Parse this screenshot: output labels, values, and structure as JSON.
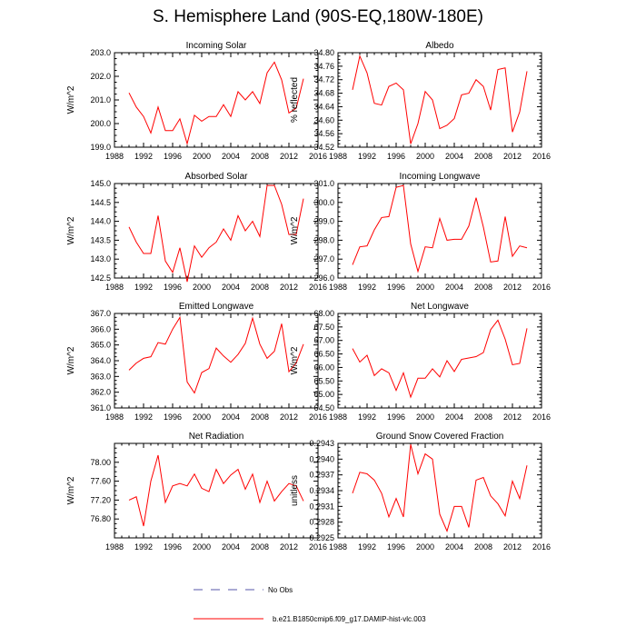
{
  "title": "S. Hemisphere Land (90S-EQ,180W-180E)",
  "legend": {
    "obs_label": "No Obs",
    "model_label": "b.e21.B1850cmip6.f09_g17.DAMIP-hist-vlc.003",
    "obs_color": "#5555aa",
    "model_color": "#ff0000"
  },
  "chart_data": [
    {
      "type": "line",
      "title": "Incoming Solar",
      "ylabel": "W/m^2",
      "xlim": [
        1988,
        2016
      ],
      "xticks": [
        1988,
        1992,
        1996,
        2000,
        2004,
        2008,
        2012,
        2016
      ],
      "ylim": [
        199.0,
        203.0
      ],
      "yticks": [
        199.0,
        200.0,
        201.0,
        202.0,
        203.0
      ],
      "ydec": 1,
      "x": [
        1990,
        1991,
        1992,
        1993,
        1994,
        1995,
        1996,
        1997,
        1998,
        1999,
        2000,
        2001,
        2002,
        2003,
        2004,
        2005,
        2006,
        2007,
        2008,
        2009,
        2010,
        2011,
        2012,
        2013,
        2014
      ],
      "series": [
        {
          "name": "b.e21.B1850cmip6.f09_g17.DAMIP-hist-vlc.003",
          "values": [
            201.3,
            200.7,
            200.3,
            199.6,
            200.7,
            199.7,
            199.7,
            200.2,
            199.15,
            200.35,
            200.1,
            200.3,
            200.3,
            200.8,
            200.3,
            201.35,
            201.0,
            201.35,
            200.85,
            202.15,
            202.6,
            201.85,
            200.45,
            200.65,
            201.9
          ]
        }
      ]
    },
    {
      "type": "line",
      "title": "Albedo",
      "ylabel": "% reflected",
      "xlim": [
        1988,
        2016
      ],
      "xticks": [
        1988,
        1992,
        1996,
        2000,
        2004,
        2008,
        2012,
        2016
      ],
      "ylim": [
        34.52,
        34.8
      ],
      "yticks": [
        34.52,
        34.56,
        34.6,
        34.64,
        34.68,
        34.72,
        34.76,
        34.8
      ],
      "ydec": 2,
      "x": [
        1990,
        1991,
        1992,
        1993,
        1994,
        1995,
        1996,
        1997,
        1998,
        1999,
        2000,
        2001,
        2002,
        2003,
        2004,
        2005,
        2006,
        2007,
        2008,
        2009,
        2010,
        2011,
        2012,
        2013,
        2014
      ],
      "series": [
        {
          "name": "b.e21.B1850cmip6.f09_g17.DAMIP-hist-vlc.003",
          "values": [
            34.69,
            34.79,
            34.74,
            34.65,
            34.645,
            34.7,
            34.71,
            34.69,
            34.53,
            34.59,
            34.685,
            34.66,
            34.575,
            34.585,
            34.605,
            34.675,
            34.68,
            34.72,
            34.7,
            34.63,
            34.75,
            34.755,
            34.565,
            34.625,
            34.745
          ]
        }
      ]
    },
    {
      "type": "line",
      "title": "Absorbed Solar",
      "ylabel": "W/m^2",
      "xlim": [
        1988,
        2016
      ],
      "xticks": [
        1988,
        1992,
        1996,
        2000,
        2004,
        2008,
        2012,
        2016
      ],
      "ylim": [
        142.5,
        145.0
      ],
      "yticks": [
        142.5,
        143.0,
        143.5,
        144.0,
        144.5,
        145.0
      ],
      "ydec": 1,
      "x": [
        1990,
        1991,
        1992,
        1993,
        1994,
        1995,
        1996,
        1997,
        1998,
        1999,
        2000,
        2001,
        2002,
        2003,
        2004,
        2005,
        2006,
        2007,
        2008,
        2009,
        2010,
        2011,
        2012,
        2013,
        2014
      ],
      "series": [
        {
          "name": "b.e21.B1850cmip6.f09_g17.DAMIP-hist-vlc.003",
          "values": [
            143.85,
            143.45,
            143.15,
            143.15,
            144.15,
            142.95,
            142.65,
            143.3,
            142.4,
            143.35,
            143.05,
            143.3,
            143.45,
            143.8,
            143.5,
            144.15,
            143.75,
            144.0,
            143.6,
            144.95,
            144.95,
            144.45,
            143.65,
            143.65,
            144.6
          ]
        }
      ]
    },
    {
      "type": "line",
      "title": "Incoming Longwave",
      "ylabel": "W/m^2",
      "xlim": [
        1988,
        2016
      ],
      "xticks": [
        1988,
        1992,
        1996,
        2000,
        2004,
        2008,
        2012,
        2016
      ],
      "ylim": [
        296.0,
        301.0
      ],
      "yticks": [
        296.0,
        297.0,
        298.0,
        299.0,
        300.0,
        301.0
      ],
      "ydec": 1,
      "x": [
        1990,
        1991,
        1992,
        1993,
        1994,
        1995,
        1996,
        1997,
        1998,
        1999,
        2000,
        2001,
        2002,
        2003,
        2004,
        2005,
        2006,
        2007,
        2008,
        2009,
        2010,
        2011,
        2012,
        2013,
        2014
      ],
      "series": [
        {
          "name": "b.e21.B1850cmip6.f09_g17.DAMIP-hist-vlc.003",
          "values": [
            296.7,
            297.65,
            297.7,
            298.55,
            299.2,
            299.25,
            300.8,
            300.9,
            297.8,
            296.35,
            297.65,
            297.6,
            299.15,
            298.0,
            298.05,
            298.05,
            298.75,
            300.25,
            298.7,
            296.85,
            296.9,
            299.25,
            297.15,
            297.7,
            297.6
          ]
        }
      ]
    },
    {
      "type": "line",
      "title": "Emitted Longwave",
      "ylabel": "W/m^2",
      "xlim": [
        1988,
        2016
      ],
      "xticks": [
        1988,
        1992,
        1996,
        2000,
        2004,
        2008,
        2012,
        2016
      ],
      "ylim": [
        361.0,
        367.0
      ],
      "yticks": [
        361.0,
        362.0,
        363.0,
        364.0,
        365.0,
        366.0,
        367.0
      ],
      "ydec": 1,
      "x": [
        1990,
        1991,
        1992,
        1993,
        1994,
        1995,
        1996,
        1997,
        1998,
        1999,
        2000,
        2001,
        2002,
        2003,
        2004,
        2005,
        2006,
        2007,
        2008,
        2009,
        2010,
        2011,
        2012,
        2013,
        2014
      ],
      "series": [
        {
          "name": "b.e21.B1850cmip6.f09_g17.DAMIP-hist-vlc.003",
          "values": [
            363.4,
            363.85,
            364.15,
            364.25,
            365.15,
            365.05,
            366.0,
            366.75,
            362.65,
            361.95,
            363.25,
            363.5,
            364.8,
            364.3,
            363.9,
            364.4,
            365.1,
            366.7,
            365.05,
            364.15,
            364.6,
            366.35,
            363.3,
            363.85,
            365.05
          ]
        }
      ]
    },
    {
      "type": "line",
      "title": "Net Longwave",
      "ylabel": "W/m^2",
      "xlim": [
        1988,
        2016
      ],
      "xticks": [
        1988,
        1992,
        1996,
        2000,
        2004,
        2008,
        2012,
        2016
      ],
      "ylim": [
        64.5,
        68.0
      ],
      "yticks": [
        64.5,
        65.0,
        65.5,
        66.0,
        66.5,
        67.0,
        67.5,
        68.0
      ],
      "ydec": 2,
      "x": [
        1990,
        1991,
        1992,
        1993,
        1994,
        1995,
        1996,
        1997,
        1998,
        1999,
        2000,
        2001,
        2002,
        2003,
        2004,
        2005,
        2006,
        2007,
        2008,
        2009,
        2010,
        2011,
        2012,
        2013,
        2014
      ],
      "series": [
        {
          "name": "b.e21.B1850cmip6.f09_g17.DAMIP-hist-vlc.003",
          "values": [
            66.7,
            66.2,
            66.45,
            65.7,
            65.95,
            65.8,
            65.15,
            65.8,
            64.9,
            65.6,
            65.6,
            65.95,
            65.65,
            66.25,
            65.85,
            66.3,
            66.35,
            66.4,
            66.55,
            67.4,
            67.75,
            67.05,
            66.1,
            66.15,
            67.45
          ]
        }
      ]
    },
    {
      "type": "line",
      "title": "Net Radiation",
      "ylabel": "W/m^2",
      "xlim": [
        1988,
        2016
      ],
      "xticks": [
        1988,
        1992,
        1996,
        2000,
        2004,
        2008,
        2012,
        2016
      ],
      "ylim": [
        76.4,
        78.4
      ],
      "yticks": [
        76.8,
        77.2,
        77.6,
        78.0
      ],
      "ydec": 2,
      "x": [
        1990,
        1991,
        1992,
        1993,
        1994,
        1995,
        1996,
        1997,
        1998,
        1999,
        2000,
        2001,
        2002,
        2003,
        2004,
        2005,
        2006,
        2007,
        2008,
        2009,
        2010,
        2011,
        2012,
        2013,
        2014
      ],
      "series": [
        {
          "name": "b.e21.B1850cmip6.f09_g17.DAMIP-hist-vlc.003",
          "values": [
            77.2,
            77.27,
            76.65,
            77.6,
            78.15,
            77.15,
            77.5,
            77.55,
            77.5,
            77.75,
            77.45,
            77.38,
            77.85,
            77.55,
            77.73,
            77.85,
            77.43,
            77.75,
            77.15,
            77.6,
            77.18,
            77.38,
            77.55,
            77.5,
            77.18
          ]
        }
      ]
    },
    {
      "type": "line",
      "title": "Ground Snow Covered Fraction",
      "ylabel": "unitless",
      "xlim": [
        1988,
        2016
      ],
      "xticks": [
        1988,
        1992,
        1996,
        2000,
        2004,
        2008,
        2012,
        2016
      ],
      "ylim": [
        0.2925,
        0.2943
      ],
      "yticks": [
        0.2925,
        0.2928,
        0.2931,
        0.2934,
        0.2937,
        0.294,
        0.2943
      ],
      "ydec": 4,
      "x": [
        1990,
        1991,
        1992,
        1993,
        1994,
        1995,
        1996,
        1997,
        1998,
        1999,
        2000,
        2001,
        2002,
        2003,
        2004,
        2005,
        2006,
        2007,
        2008,
        2009,
        2010,
        2011,
        2012,
        2013,
        2014
      ],
      "series": [
        {
          "name": "b.e21.B1850cmip6.f09_g17.DAMIP-hist-vlc.003",
          "values": [
            0.29335,
            0.29375,
            0.29372,
            0.2936,
            0.29335,
            0.2929,
            0.29325,
            0.2929,
            0.29428,
            0.29372,
            0.2941,
            0.294,
            0.29295,
            0.29263,
            0.2931,
            0.2931,
            0.2927,
            0.2936,
            0.29365,
            0.2933,
            0.29315,
            0.29292,
            0.29358,
            0.29325,
            0.29388
          ]
        }
      ]
    }
  ]
}
